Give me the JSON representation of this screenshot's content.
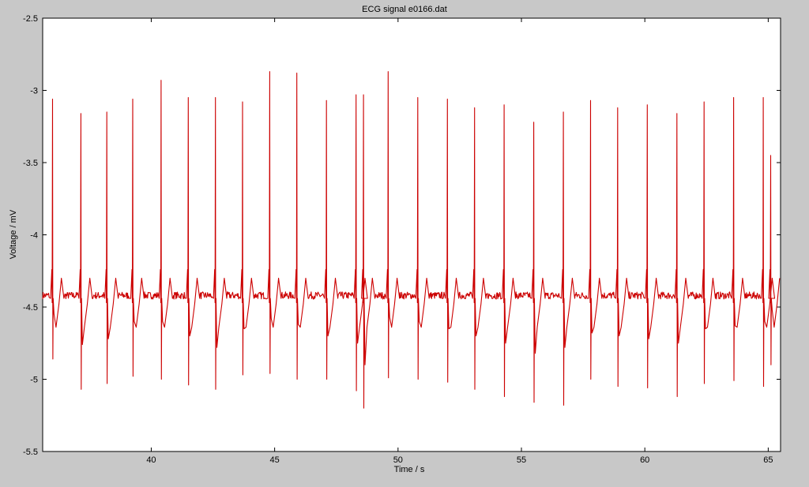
{
  "chart_data": {
    "type": "line",
    "title": "ECG signal e0166.dat",
    "xlabel": "Time / s",
    "ylabel": "Voltage / mV",
    "xlim": [
      35.6,
      65.5
    ],
    "ylim": [
      -5.5,
      -2.5
    ],
    "xticks": [
      40,
      45,
      50,
      55,
      60,
      65
    ],
    "xtick_labels": [
      "40",
      "45",
      "50",
      "55",
      "60",
      "65"
    ],
    "yticks": [
      -5.5,
      -5,
      -4.5,
      -4,
      -3.5,
      -3,
      -2.5
    ],
    "ytick_labels": [
      "-5.5",
      "-5",
      "-4.5",
      "-4",
      "-3.5",
      "-3",
      "-2.5"
    ],
    "grid": false,
    "line_color": "#cc0000",
    "series": [
      {
        "baseline_mV": -4.42,
        "r_peaks": [
          {
            "t": 36.0,
            "peak": -3.06,
            "trough": -4.86,
            "s": -4.55
          },
          {
            "t": 37.15,
            "peak": -3.16,
            "trough": -5.07,
            "s": -4.76
          },
          {
            "t": 38.2,
            "peak": -3.15,
            "trough": -5.03,
            "s": -4.72
          },
          {
            "t": 39.25,
            "peak": -3.06,
            "trough": -4.98,
            "s": -4.6
          },
          {
            "t": 40.4,
            "peak": -2.93,
            "trough": -5.0,
            "s": -4.6
          },
          {
            "t": 41.5,
            "peak": -3.05,
            "trough": -5.04,
            "s": -4.7
          },
          {
            "t": 42.6,
            "peak": -3.05,
            "trough": -5.07,
            "s": -4.78
          },
          {
            "t": 43.7,
            "peak": -3.08,
            "trough": -4.97,
            "s": -4.65
          },
          {
            "t": 44.8,
            "peak": -2.87,
            "trough": -4.96,
            "s": -4.58
          },
          {
            "t": 45.9,
            "peak": -2.88,
            "trough": -5.0,
            "s": -4.62
          },
          {
            "t": 47.1,
            "peak": -3.07,
            "trough": -5.0,
            "s": -4.7
          },
          {
            "t": 48.3,
            "peak": -3.03,
            "trough": -5.08,
            "s": -4.75
          },
          {
            "t": 48.6,
            "peak": -3.03,
            "trough": -5.2,
            "s": -4.9
          },
          {
            "t": 49.6,
            "peak": -2.87,
            "trough": -4.99,
            "s": -4.57
          },
          {
            "t": 50.8,
            "peak": -3.05,
            "trough": -5.0,
            "s": -4.6
          },
          {
            "t": 52.0,
            "peak": -3.06,
            "trough": -5.02,
            "s": -4.65
          },
          {
            "t": 53.1,
            "peak": -3.12,
            "trough": -5.07,
            "s": -4.7
          },
          {
            "t": 54.3,
            "peak": -3.1,
            "trough": -5.12,
            "s": -4.75
          },
          {
            "t": 55.5,
            "peak": -3.22,
            "trough": -5.16,
            "s": -4.82
          },
          {
            "t": 56.7,
            "peak": -3.15,
            "trough": -5.18,
            "s": -4.78
          },
          {
            "t": 57.8,
            "peak": -3.07,
            "trough": -5.0,
            "s": -4.68
          },
          {
            "t": 58.9,
            "peak": -3.12,
            "trough": -5.05,
            "s": -4.7
          },
          {
            "t": 60.1,
            "peak": -3.1,
            "trough": -5.06,
            "s": -4.72
          },
          {
            "t": 61.3,
            "peak": -3.16,
            "trough": -5.12,
            "s": -4.75
          },
          {
            "t": 62.4,
            "peak": -3.08,
            "trough": -5.03,
            "s": -4.65
          },
          {
            "t": 63.6,
            "peak": -3.05,
            "trough": -5.01,
            "s": -4.63
          },
          {
            "t": 64.8,
            "peak": -3.05,
            "trough": -5.05,
            "s": -4.6
          },
          {
            "t": 65.1,
            "peak": -3.45,
            "trough": -4.9,
            "s": -4.52
          }
        ]
      }
    ]
  }
}
